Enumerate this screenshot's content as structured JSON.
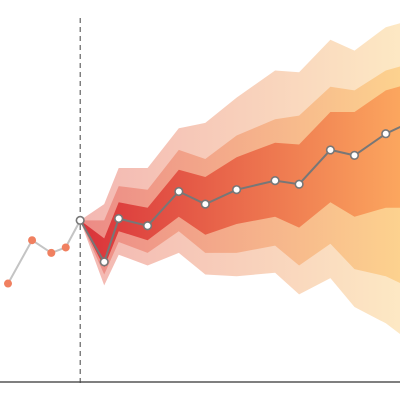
{
  "chart_data": {
    "type": "area",
    "title": "",
    "xlabel": "",
    "ylabel": "",
    "grid": false,
    "legend": "none",
    "x_range": [
      0,
      16.5
    ],
    "y_range": [
      -2,
      16
    ],
    "forecast_start": 3,
    "history": {
      "x": [
        0,
        1,
        1.8,
        2.4,
        3
      ],
      "y": [
        2.4,
        4.8,
        4.1,
        4.4,
        5.9
      ],
      "line_color": "#c4c4c4",
      "point_color": "#f08060"
    },
    "forecast": {
      "x": [
        3,
        4,
        4.6,
        5.8,
        7.1,
        8.2,
        9.5,
        11.1,
        12.1,
        13.4,
        14.4,
        15.7,
        16.5
      ],
      "y": [
        5.9,
        3.6,
        6.0,
        5.6,
        7.5,
        6.8,
        7.6,
        8.1,
        7.9,
        9.8,
        9.5,
        10.7,
        11.2
      ],
      "bands": [
        {
          "level": "outer",
          "lower": [
            5.9,
            2.3,
            4.0,
            3.4,
            4.1,
            2.9,
            2.8,
            3.0,
            1.8,
            2.7,
            1.1,
            0.2,
            -0.6
          ],
          "upper": [
            5.9,
            6.8,
            8.8,
            8.8,
            11.0,
            11.3,
            12.7,
            14.2,
            14.1,
            15.9,
            15.3,
            16.6,
            16.9
          ]
        },
        {
          "level": "middle",
          "lower": [
            5.9,
            2.9,
            4.7,
            4.1,
            5.3,
            4.1,
            4.1,
            4.5,
            3.4,
            4.6,
            3.2,
            2.8,
            2.3
          ],
          "upper": [
            5.9,
            5.9,
            7.8,
            7.6,
            9.8,
            9.3,
            10.6,
            11.5,
            11.7,
            13.3,
            13.1,
            14.2,
            14.5
          ]
        },
        {
          "level": "inner",
          "lower": [
            5.9,
            3.3,
            5.3,
            4.8,
            6.1,
            5.1,
            5.7,
            6.1,
            5.5,
            6.9,
            6.1,
            6.6,
            6.6
          ],
          "upper": [
            5.9,
            4.9,
            6.9,
            6.6,
            8.7,
            8.3,
            9.4,
            10.2,
            10.1,
            11.9,
            11.9,
            13.1,
            13.4
          ]
        }
      ],
      "line_color": "#777777",
      "point_fill": "#ffffff"
    },
    "band_colors": {
      "outer": {
        "start": "#f3b7b2",
        "end": "#fde9c4"
      },
      "middle": {
        "start": "#ec8a86",
        "end": "#fdd38f"
      },
      "inner": {
        "start": "#d9323a",
        "end": "#fca85f"
      }
    },
    "axis_color": "#555555",
    "divider_color": "#444444"
  }
}
